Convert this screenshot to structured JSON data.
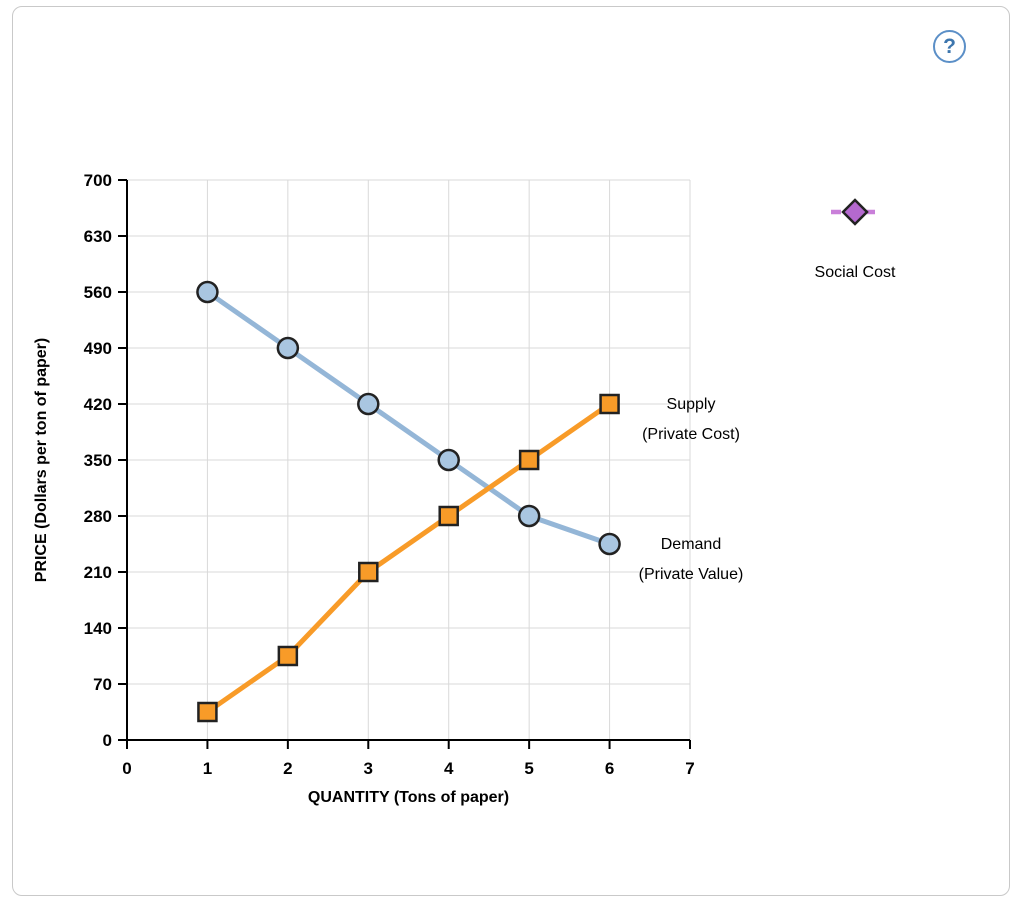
{
  "help": {
    "label": "?"
  },
  "chart_data": {
    "type": "line",
    "title": "",
    "xlabel": "QUANTITY (Tons of paper)",
    "ylabel": "PRICE (Dollars per ton of paper)",
    "xlim": [
      0,
      7
    ],
    "ylim": [
      0,
      700
    ],
    "xticks": [
      0,
      1,
      2,
      3,
      4,
      5,
      6,
      7
    ],
    "yticks": [
      0,
      70,
      140,
      210,
      280,
      350,
      420,
      490,
      560,
      630,
      700
    ],
    "grid": true,
    "series": [
      {
        "key": "demand",
        "name": "Demand (Private Value)",
        "label_lines": [
          "Demand",
          "(Private Value)"
        ],
        "marker": "circle",
        "color": "#94b6d7",
        "marker_fill": "#a9c6e1",
        "marker_stroke": "#222222",
        "x": [
          1,
          2,
          3,
          4,
          5,
          6
        ],
        "y": [
          560,
          490,
          420,
          350,
          280,
          245
        ]
      },
      {
        "key": "supply",
        "name": "Supply (Private Cost)",
        "label_lines": [
          "Supply",
          "(Private Cost)"
        ],
        "marker": "square",
        "color": "#f89b28",
        "marker_fill": "#f89b28",
        "marker_stroke": "#222222",
        "x": [
          1,
          2,
          3,
          4,
          5,
          6
        ],
        "y": [
          35,
          105,
          210,
          280,
          350,
          420
        ]
      }
    ],
    "palette_item": {
      "name": "Social Cost",
      "marker": "diamond",
      "line_style": "dashed",
      "line_color": "#c97fd9",
      "marker_fill": "#b469cf",
      "marker_stroke": "#222222"
    }
  }
}
